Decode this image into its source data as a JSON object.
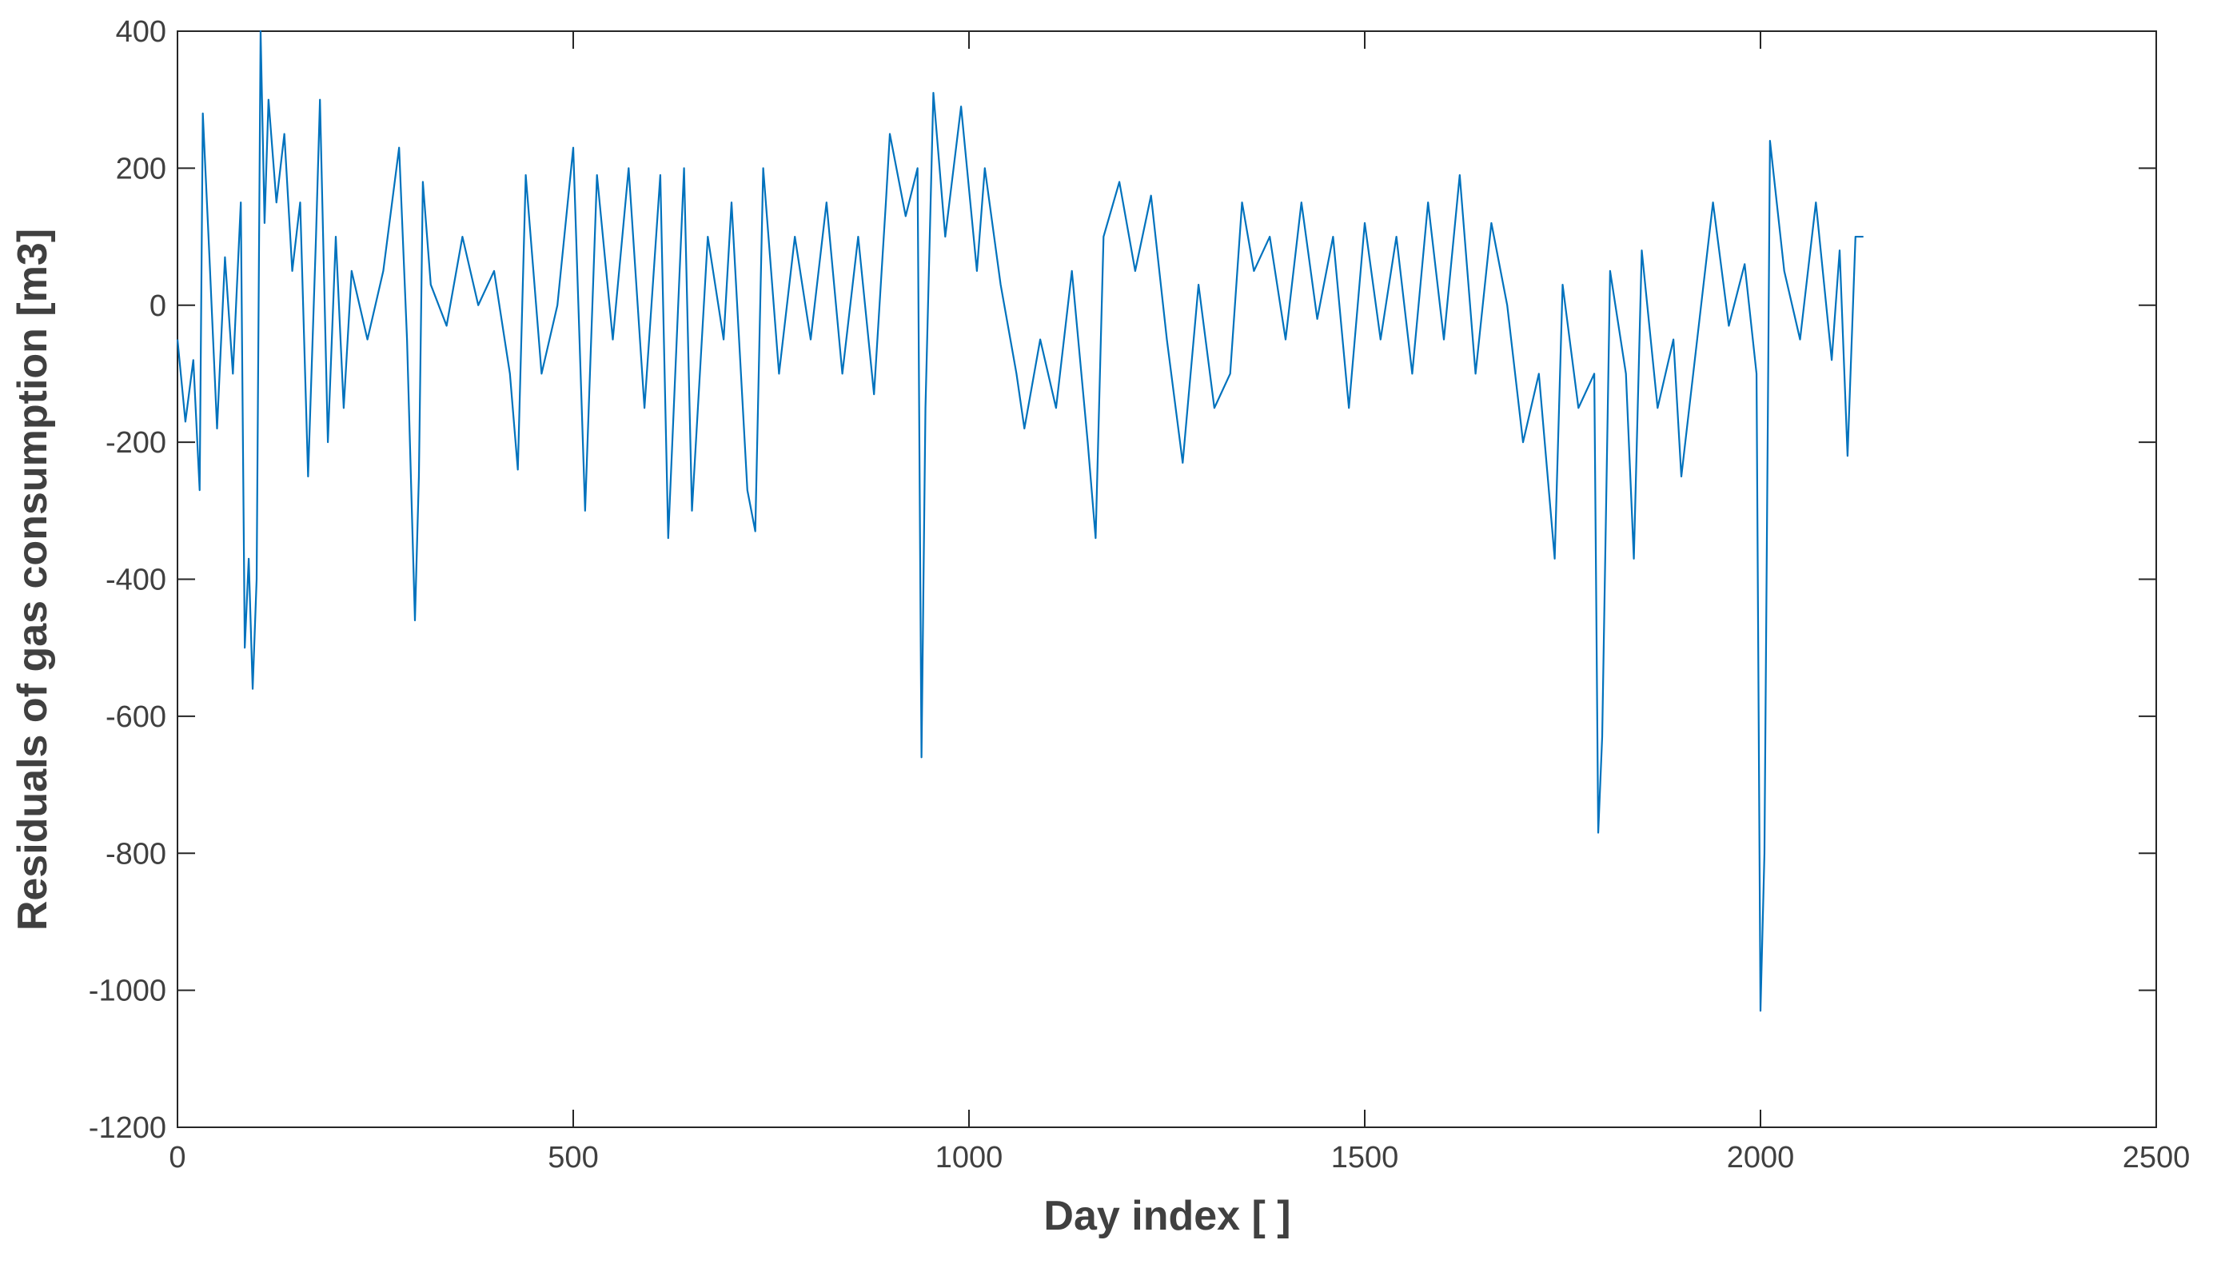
{
  "chart_data": {
    "type": "line",
    "xlabel": "Day index [ ]",
    "ylabel": "Residuals of gas consumption [m3]",
    "x": [
      0,
      10,
      20,
      28,
      32,
      40,
      50,
      60,
      70,
      80,
      85,
      90,
      95,
      100,
      105,
      110,
      115,
      125,
      135,
      145,
      155,
      165,
      175,
      180,
      190,
      200,
      210,
      220,
      240,
      260,
      280,
      290,
      300,
      305,
      310,
      320,
      340,
      360,
      380,
      400,
      420,
      430,
      440,
      460,
      480,
      500,
      515,
      530,
      550,
      570,
      590,
      610,
      620,
      640,
      650,
      670,
      690,
      700,
      720,
      730,
      740,
      760,
      780,
      800,
      820,
      840,
      860,
      880,
      895,
      900,
      920,
      935,
      940,
      945,
      955,
      970,
      990,
      1010,
      1020,
      1040,
      1060,
      1070,
      1090,
      1110,
      1130,
      1150,
      1160,
      1170,
      1190,
      1210,
      1230,
      1250,
      1270,
      1290,
      1310,
      1330,
      1345,
      1360,
      1380,
      1400,
      1420,
      1440,
      1460,
      1480,
      1500,
      1520,
      1540,
      1560,
      1580,
      1600,
      1620,
      1640,
      1660,
      1680,
      1700,
      1720,
      1740,
      1750,
      1770,
      1790,
      1795,
      1800,
      1810,
      1830,
      1840,
      1850,
      1870,
      1890,
      1900,
      1920,
      1940,
      1960,
      1980,
      1995,
      2000,
      2005,
      2012,
      2030,
      2050,
      2070,
      2090,
      2100,
      2110,
      2120,
      2130
    ],
    "series": [
      {
        "name": "residuals",
        "color": "#0072bd",
        "values": [
          -50,
          -170,
          -80,
          -270,
          280,
          80,
          -180,
          70,
          -100,
          150,
          -500,
          -370,
          -560,
          -400,
          400,
          120,
          300,
          150,
          250,
          50,
          150,
          -250,
          100,
          300,
          -200,
          100,
          -150,
          50,
          -50,
          50,
          230,
          -50,
          -460,
          -250,
          180,
          30,
          -30,
          100,
          0,
          50,
          -100,
          -240,
          190,
          -100,
          0,
          230,
          -300,
          190,
          -50,
          200,
          -150,
          190,
          -340,
          200,
          -300,
          100,
          -50,
          150,
          -270,
          -330,
          200,
          -100,
          100,
          -50,
          150,
          -100,
          100,
          -130,
          150,
          250,
          130,
          200,
          -660,
          -150,
          310,
          100,
          290,
          50,
          200,
          30,
          -100,
          -180,
          -50,
          -150,
          50,
          -200,
          -340,
          100,
          180,
          50,
          160,
          -50,
          -230,
          30,
          -150,
          -100,
          150,
          50,
          100,
          -50,
          150,
          -20,
          100,
          -150,
          120,
          -50,
          100,
          -100,
          150,
          -50,
          190,
          -100,
          120,
          0,
          -200,
          -100,
          -370,
          30,
          -150,
          -100,
          -770,
          -630,
          50,
          -100,
          -370,
          80,
          -150,
          -50,
          -250,
          -50,
          150,
          -30,
          60,
          -100,
          -1030,
          -800,
          240,
          50,
          -50,
          150,
          -80,
          80,
          -220,
          100,
          100
        ]
      }
    ],
    "xlim": [
      0,
      2500
    ],
    "xticks": [
      0,
      500,
      1000,
      1500,
      2000,
      2500
    ],
    "ylim": [
      -1200,
      400
    ],
    "yticks": [
      -1200,
      -1000,
      -800,
      -600,
      -400,
      -200,
      0,
      200,
      400
    ]
  }
}
